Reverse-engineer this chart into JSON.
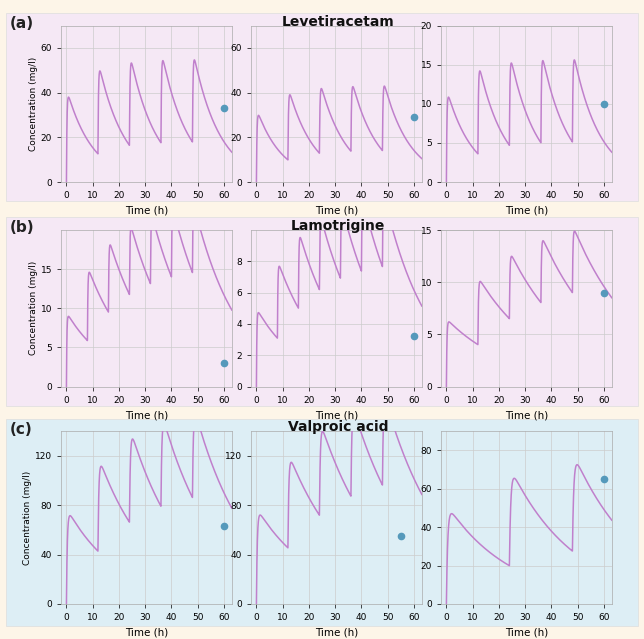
{
  "title_a": "Levetiracetam",
  "title_b": "Lamotrigine",
  "title_c": "Valproic acid",
  "row_labels": [
    "(a)",
    "(b)",
    "(c)"
  ],
  "curve_color": "#c080cc",
  "dot_color": "#5599bb",
  "bg_color_ab": "#f5e8f5",
  "bg_color_c": "#ddeef5",
  "outer_bg": "#fdf5e8",
  "grid_color": "#cccccc",
  "xlabel": "Time (h)",
  "ylabel": "Concentration (mg/l)",
  "xlim": [
    -2,
    63
  ],
  "xticks": [
    0,
    10,
    20,
    30,
    40,
    50,
    60
  ],
  "rows": [
    {
      "bg": "#f5e8f5",
      "title_col": 1,
      "subplots": [
        {
          "ylim": [
            0,
            70
          ],
          "yticks": [
            0,
            20,
            40,
            60
          ],
          "dose_interval": 12,
          "n_doses": 5,
          "ka": 5.0,
          "ke": 0.1,
          "scale": 42,
          "dot_y": 33,
          "dot_x": 60
        },
        {
          "ylim": [
            0,
            70
          ],
          "yticks": [
            0,
            20,
            40,
            60
          ],
          "dose_interval": 12,
          "n_doses": 5,
          "ka": 5.0,
          "ke": 0.1,
          "scale": 33,
          "dot_y": 29,
          "dot_x": 60
        },
        {
          "ylim": [
            0,
            20
          ],
          "yticks": [
            0,
            5,
            10,
            15,
            20
          ],
          "dose_interval": 12,
          "n_doses": 5,
          "ka": 5.0,
          "ke": 0.1,
          "scale": 12,
          "dot_y": 10,
          "dot_x": 60
        }
      ]
    },
    {
      "bg": "#f5e8f5",
      "title_col": 1,
      "subplots": [
        {
          "ylim": [
            0,
            20
          ],
          "yticks": [
            0,
            5,
            10,
            15
          ],
          "dose_interval": 8,
          "n_doses": 7,
          "ka": 6.0,
          "ke": 0.06,
          "scale": 9.5,
          "dot_y": 3.0,
          "dot_x": 60
        },
        {
          "ylim": [
            0,
            10
          ],
          "yticks": [
            0,
            2,
            4,
            6,
            8
          ],
          "dose_interval": 8,
          "n_doses": 7,
          "ka": 6.0,
          "ke": 0.06,
          "scale": 5.0,
          "dot_y": 3.2,
          "dot_x": 60
        },
        {
          "ylim": [
            0,
            15
          ],
          "yticks": [
            0,
            5,
            10,
            15
          ],
          "dose_interval": 12,
          "n_doses": 5,
          "ka": 5.0,
          "ke": 0.04,
          "scale": 6.5,
          "dot_y": 9.0,
          "dot_x": 60
        }
      ]
    },
    {
      "bg": "#ddeef5",
      "title_col": 1,
      "subplots": [
        {
          "ylim": [
            0,
            140
          ],
          "yticks": [
            0,
            40,
            80,
            120
          ],
          "dose_interval": 12,
          "n_doses": 5,
          "ka": 3.0,
          "ke": 0.05,
          "scale": 78,
          "dot_y": 63,
          "dot_x": 60
        },
        {
          "ylim": [
            0,
            140
          ],
          "yticks": [
            0,
            40,
            80,
            120
          ],
          "dose_interval": 12,
          "n_doses": 5,
          "ka": 3.0,
          "ke": 0.045,
          "scale": 78,
          "dot_y": 55,
          "dot_x": 55
        },
        {
          "ylim": [
            0,
            90
          ],
          "yticks": [
            0,
            20,
            40,
            60,
            80
          ],
          "dose_interval": 24,
          "n_doses": 3,
          "ka": 2.0,
          "ke": 0.04,
          "scale": 52,
          "dot_y": 65,
          "dot_x": 60
        }
      ]
    }
  ]
}
